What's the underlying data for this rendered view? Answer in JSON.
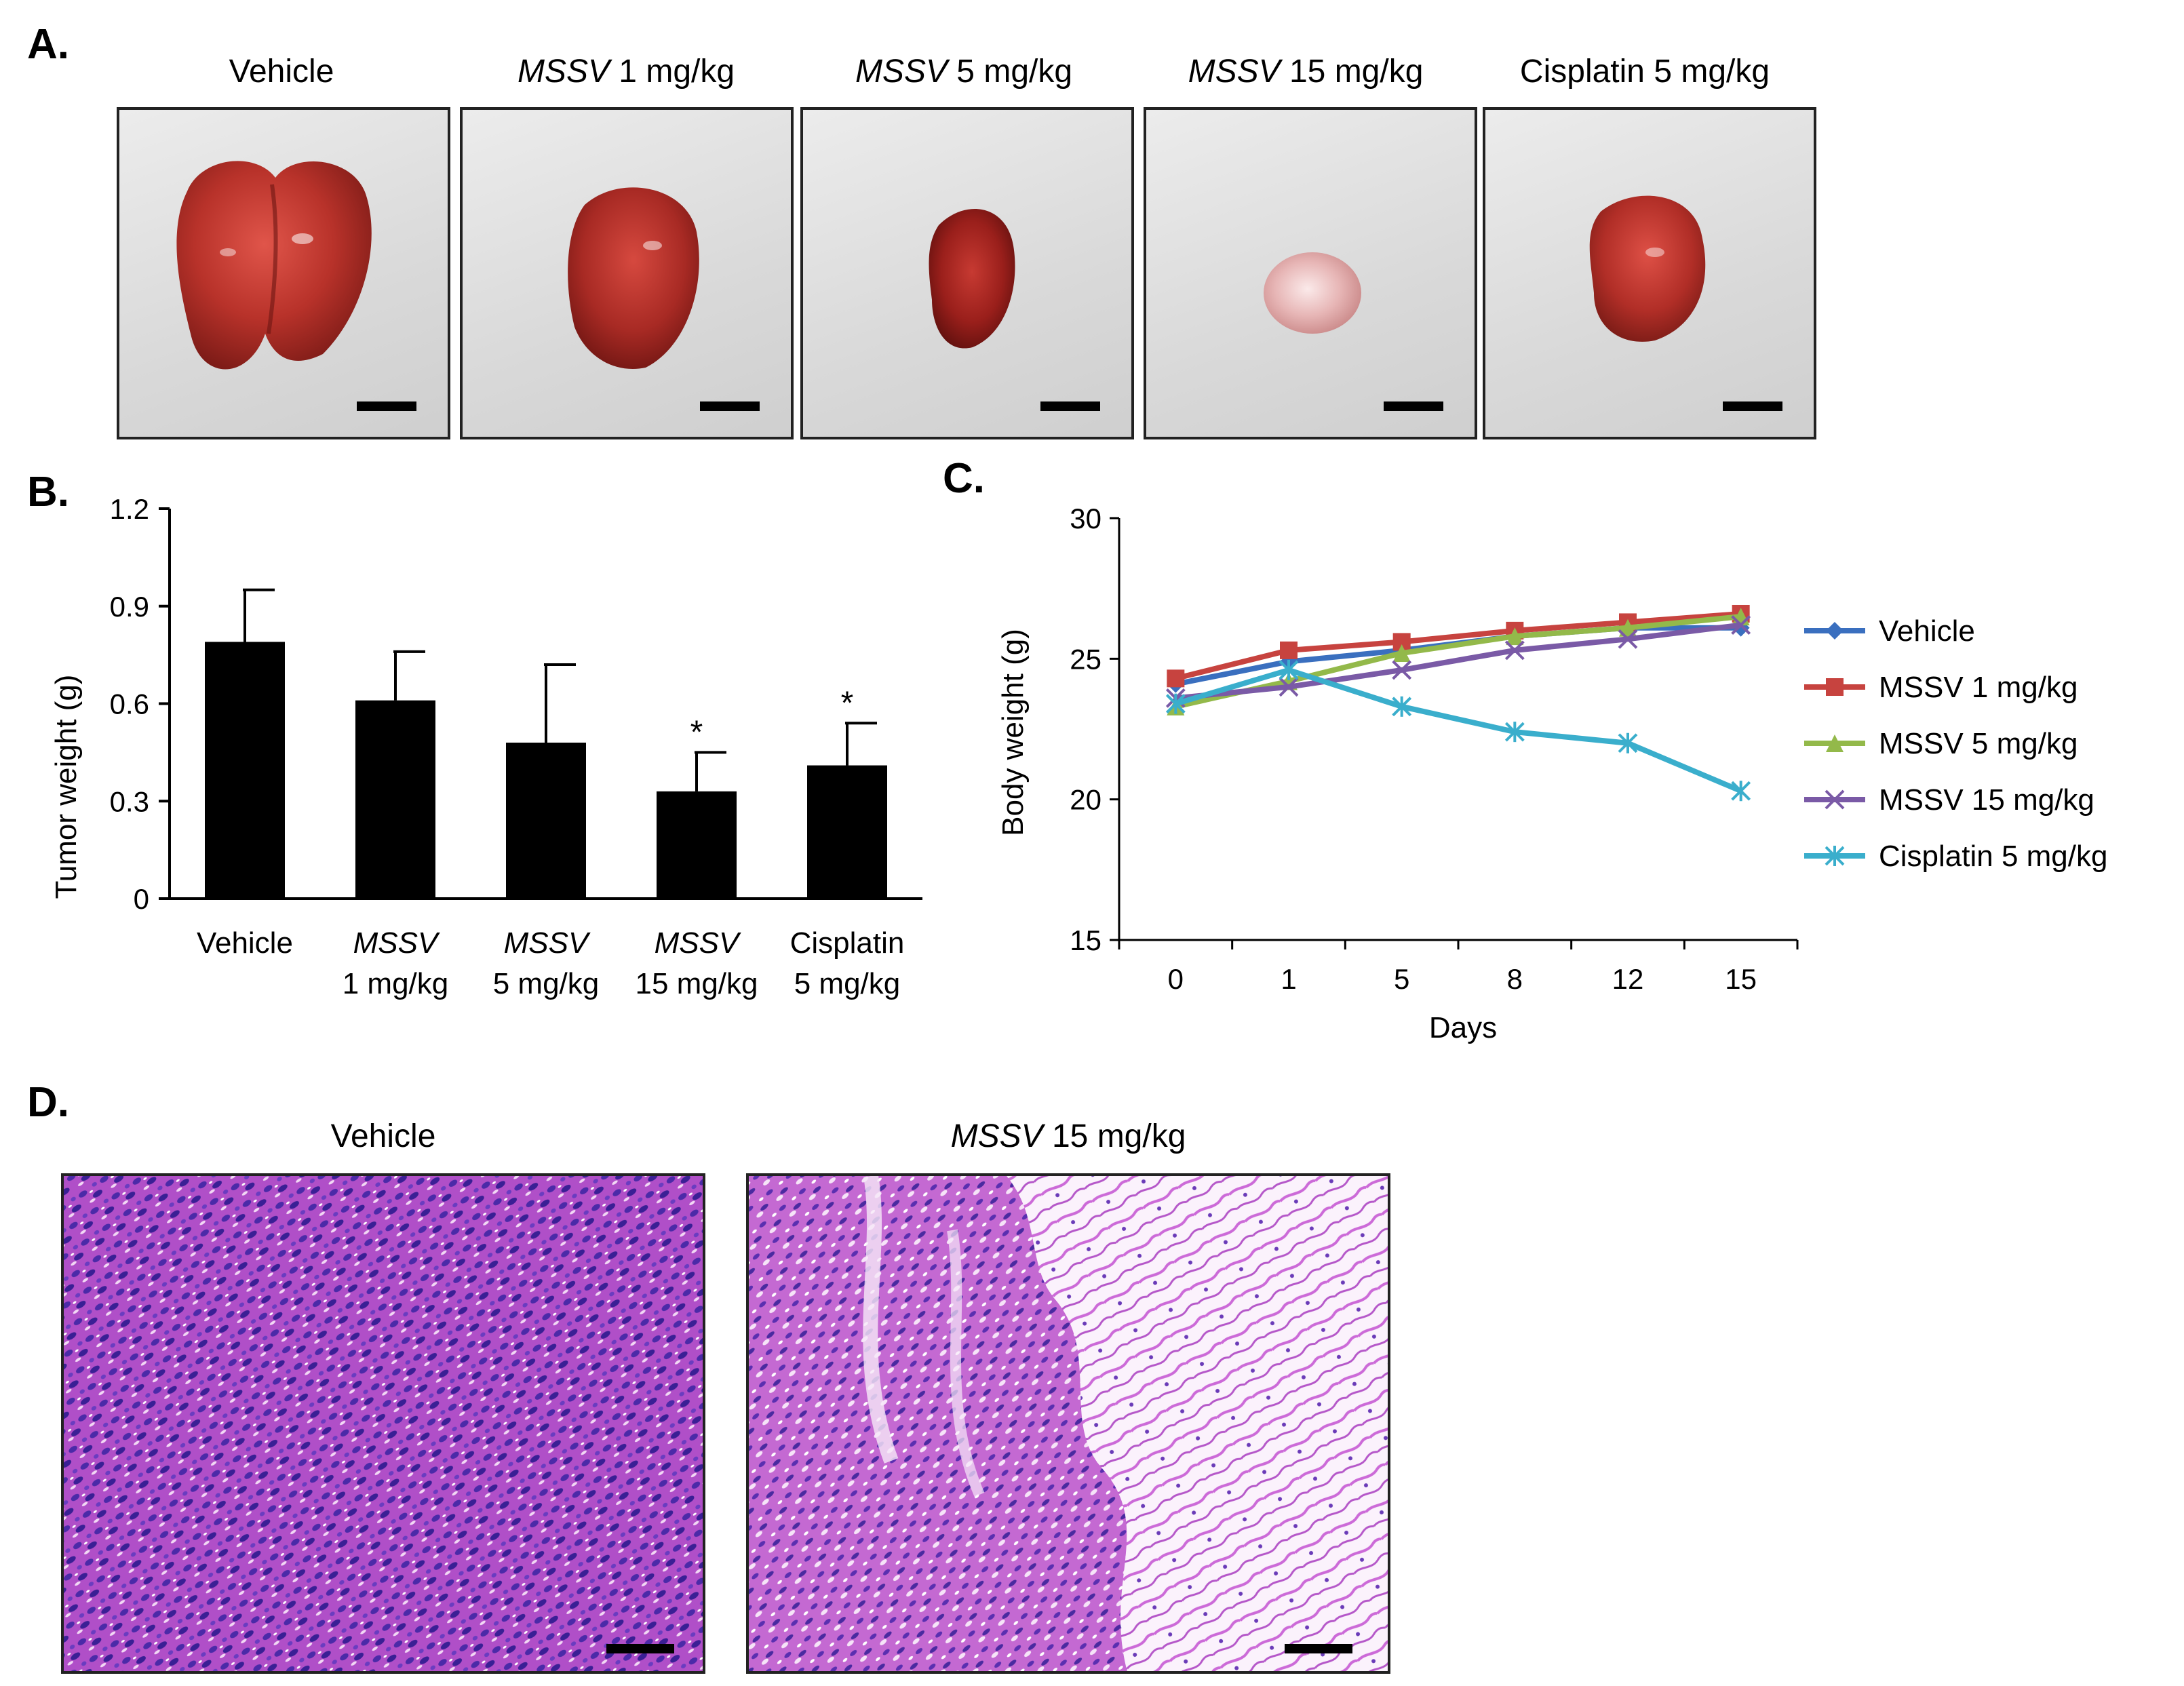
{
  "panels": {
    "a": {
      "letter": "A."
    },
    "b": {
      "letter": "B."
    },
    "c": {
      "letter": "C."
    },
    "d": {
      "letter": "D."
    }
  },
  "panel_a": {
    "photos": [
      {
        "label_italic": "",
        "label_rest": "Vehicle"
      },
      {
        "label_italic": "MSSV",
        "label_rest": " 1 mg/kg"
      },
      {
        "label_italic": "MSSV",
        "label_rest": " 5 mg/kg"
      },
      {
        "label_italic": "MSSV",
        "label_rest": " 15 mg/kg"
      },
      {
        "label_italic": "",
        "label_rest": "Cisplatin 5 mg/kg"
      }
    ]
  },
  "panel_d": {
    "images": [
      {
        "label_italic": "",
        "label_rest": "Vehicle"
      },
      {
        "label_italic": "MSSV",
        "label_rest": " 15 mg/kg"
      }
    ]
  },
  "colors": {
    "bar": "#000000",
    "vehicle": "#3a6fbf",
    "mssv1": "#c7433f",
    "mssv5": "#93b94a",
    "mssv15": "#7a5aa6",
    "cisplatin": "#3aaecc"
  },
  "chart_data": [
    {
      "type": "bar",
      "panel": "B",
      "ylabel": "Tumor weight (g)",
      "ylim": [
        0,
        1.2
      ],
      "yticks": [
        "0",
        "0.3",
        "0.6",
        "0.9",
        "1.2"
      ],
      "ytick_values": [
        0,
        0.3,
        0.6,
        0.9,
        1.2
      ],
      "categories": [
        {
          "italic": "",
          "line1": "Vehicle",
          "line2": ""
        },
        {
          "italic": "MSSV",
          "line1": "",
          "line2": "1 mg/kg"
        },
        {
          "italic": "MSSV",
          "line1": "",
          "line2": "5 mg/kg"
        },
        {
          "italic": "MSSV",
          "line1": "",
          "line2": "15 mg/kg"
        },
        {
          "italic": "",
          "line1": "Cisplatin",
          "line2": "5 mg/kg"
        }
      ],
      "values": [
        0.79,
        0.61,
        0.48,
        0.33,
        0.41
      ],
      "errors": [
        0.16,
        0.15,
        0.24,
        0.12,
        0.13
      ],
      "significance": [
        "",
        "",
        "",
        "*",
        "*"
      ]
    },
    {
      "type": "line",
      "panel": "C",
      "xlabel": "Days",
      "ylabel": "Body weight (g)",
      "ylim": [
        15,
        30
      ],
      "yticks": [
        "15",
        "20",
        "25",
        "30"
      ],
      "ytick_values": [
        15,
        20,
        25,
        30
      ],
      "x": [
        "0",
        "1",
        "5",
        "8",
        "12",
        "15"
      ],
      "series": [
        {
          "name": "Vehicle",
          "marker": "diamond",
          "values": [
            24.1,
            24.9,
            25.3,
            25.8,
            26.1,
            26.1
          ]
        },
        {
          "name": "MSSV 1 mg/kg",
          "marker": "square",
          "values": [
            24.3,
            25.3,
            25.6,
            26.0,
            26.3,
            26.6
          ]
        },
        {
          "name": "MSSV 5 mg/kg",
          "marker": "triangle",
          "values": [
            23.3,
            24.2,
            25.2,
            25.8,
            26.1,
            26.5
          ]
        },
        {
          "name": "MSSV 15 mg/kg",
          "marker": "x",
          "values": [
            23.6,
            24.0,
            24.6,
            25.3,
            25.7,
            26.2
          ]
        },
        {
          "name": "Cisplatin 5 mg/kg",
          "marker": "star",
          "values": [
            23.4,
            24.6,
            23.3,
            22.4,
            22.0,
            20.3
          ]
        }
      ],
      "legend_position": "right"
    }
  ]
}
